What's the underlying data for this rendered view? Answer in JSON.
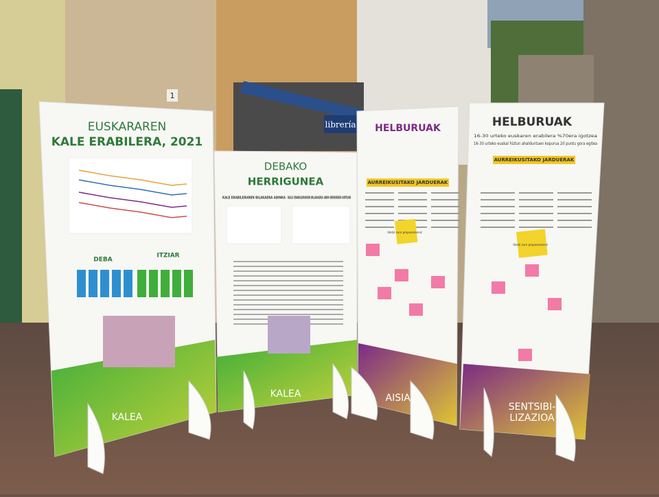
{
  "scene": {
    "shop_sign": "librería",
    "door_number": "1"
  },
  "panels": [
    {
      "title": [
        "EUSKARAREN",
        "KALE ERABILERA, 2021"
      ],
      "sections": [
        "DEBA",
        "ITZIAR"
      ],
      "footer": [
        "KALEA"
      ]
    },
    {
      "title": [
        "DEBAKO",
        "HERRIGUNEA"
      ],
      "sections": [
        "KALE ERABILERAREN BILAKAERA ADINKA",
        "KALE ERABILERAREN BILAKAERA ADIN BEREKOEN ARTEAN"
      ],
      "footer": [
        "KALEA"
      ]
    },
    {
      "title": [
        "HELBURUAK"
      ],
      "sections": [
        "AURREIKUSITAKO JARDUERAK"
      ],
      "note": "Idatzi zure proposamena!",
      "footer": [
        "AISIALD"
      ]
    },
    {
      "title": [
        "HELBURUAK"
      ],
      "goals": [
        "16-30 urteko euskaren erabilera %70era igotzea",
        "16-30 urteko euskal hiztun ahalduntuen kopurua 20 puntu gora egitea"
      ],
      "sections": [
        "AURREIKUSITAKO JARDUERAK"
      ],
      "note": "Idatzi zure proposamena!",
      "footer": [
        "SENTSIBI-",
        "LIZAZIOA"
      ]
    }
  ]
}
